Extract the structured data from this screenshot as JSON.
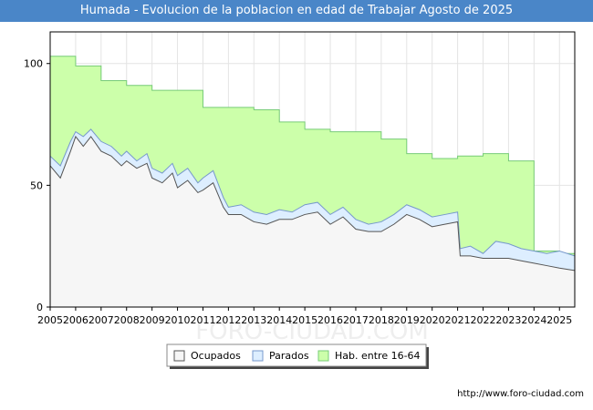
{
  "chart_data": {
    "type": "area",
    "title": "Humada - Evolucion de la poblacion en edad de Trabajar Agosto de 2025",
    "xlabel": "",
    "ylabel": "",
    "ylim": [
      0,
      113
    ],
    "xlim": [
      2005,
      2025.6
    ],
    "y_ticks": [
      0,
      50,
      100
    ],
    "x_ticks": [
      2005,
      2006,
      2007,
      2008,
      2009,
      2010,
      2011,
      2012,
      2013,
      2014,
      2015,
      2016,
      2017,
      2018,
      2019,
      2020,
      2021,
      2022,
      2023,
      2024,
      2025
    ],
    "grid": true,
    "legend_position": "bottom",
    "series": [
      {
        "name": "Hab. entre 16-64",
        "color": "#ccffaa",
        "line_color": "#77cc77",
        "x": [
          2005,
          2006,
          2007,
          2008,
          2009,
          2010,
          2011,
          2012,
          2013,
          2014,
          2015,
          2016,
          2017,
          2018,
          2019,
          2020,
          2021,
          2022,
          2023,
          2024,
          2025
        ],
        "values": [
          103,
          99,
          93,
          91,
          89,
          89,
          82,
          82,
          81,
          76,
          73,
          72,
          72,
          69,
          63,
          61,
          62,
          63,
          60,
          23,
          22
        ]
      },
      {
        "name": "Parados",
        "color": "#ddeeff",
        "line_color": "#7799cc",
        "x": [
          2005,
          2005.4,
          2005.8,
          2006,
          2006.3,
          2006.6,
          2007,
          2007.4,
          2007.8,
          2008,
          2008.4,
          2008.8,
          2009,
          2009.4,
          2009.8,
          2010,
          2010.4,
          2010.8,
          2011,
          2011.4,
          2011.8,
          2012,
          2012.5,
          2013,
          2013.5,
          2014,
          2014.5,
          2015,
          2015.5,
          2016,
          2016.5,
          2017,
          2017.5,
          2018,
          2018.5,
          2019,
          2019.5,
          2020,
          2020.5,
          2021,
          2021.1,
          2021.5,
          2022,
          2022.5,
          2023,
          2023.5,
          2024,
          2024.5,
          2025,
          2025.6
        ],
        "values": [
          62,
          58,
          68,
          72,
          70,
          73,
          68,
          66,
          62,
          64,
          60,
          63,
          57,
          55,
          59,
          54,
          57,
          51,
          53,
          56,
          45,
          41,
          42,
          39,
          38,
          40,
          39,
          42,
          43,
          38,
          41,
          36,
          34,
          35,
          38,
          42,
          40,
          37,
          38,
          39,
          24,
          25,
          22,
          27,
          26,
          24,
          23,
          22,
          23,
          21
        ]
      },
      {
        "name": "Ocupados",
        "color": "#f6f6f6",
        "line_color": "#555555",
        "x": [
          2005,
          2005.4,
          2005.8,
          2006,
          2006.3,
          2006.6,
          2007,
          2007.4,
          2007.8,
          2008,
          2008.4,
          2008.8,
          2009,
          2009.4,
          2009.8,
          2010,
          2010.4,
          2010.8,
          2011,
          2011.4,
          2011.8,
          2012,
          2012.5,
          2013,
          2013.5,
          2014,
          2014.5,
          2015,
          2015.5,
          2016,
          2016.5,
          2017,
          2017.5,
          2018,
          2018.5,
          2019,
          2019.5,
          2020,
          2020.5,
          2021,
          2021.1,
          2021.5,
          2022,
          2022.5,
          2023,
          2023.5,
          2024,
          2024.5,
          2025,
          2025.6
        ],
        "values": [
          58,
          53,
          64,
          70,
          66,
          70,
          64,
          62,
          58,
          60,
          57,
          59,
          53,
          51,
          55,
          49,
          52,
          47,
          48,
          51,
          41,
          38,
          38,
          35,
          34,
          36,
          36,
          38,
          39,
          34,
          37,
          32,
          31,
          31,
          34,
          38,
          36,
          33,
          34,
          35,
          21,
          21,
          20,
          20,
          20,
          19,
          18,
          17,
          16,
          15
        ]
      }
    ],
    "legend": [
      {
        "label": "Ocupados",
        "color": "#f6f6f6",
        "border": "#555555"
      },
      {
        "label": "Parados",
        "color": "#ddeeff",
        "border": "#7799cc"
      },
      {
        "label": "Hab. entre 16-64",
        "color": "#ccffaa",
        "border": "#77cc77"
      }
    ]
  },
  "watermark": "FORO-CIUDAD.COM",
  "source": "http://www.foro-ciudad.com"
}
